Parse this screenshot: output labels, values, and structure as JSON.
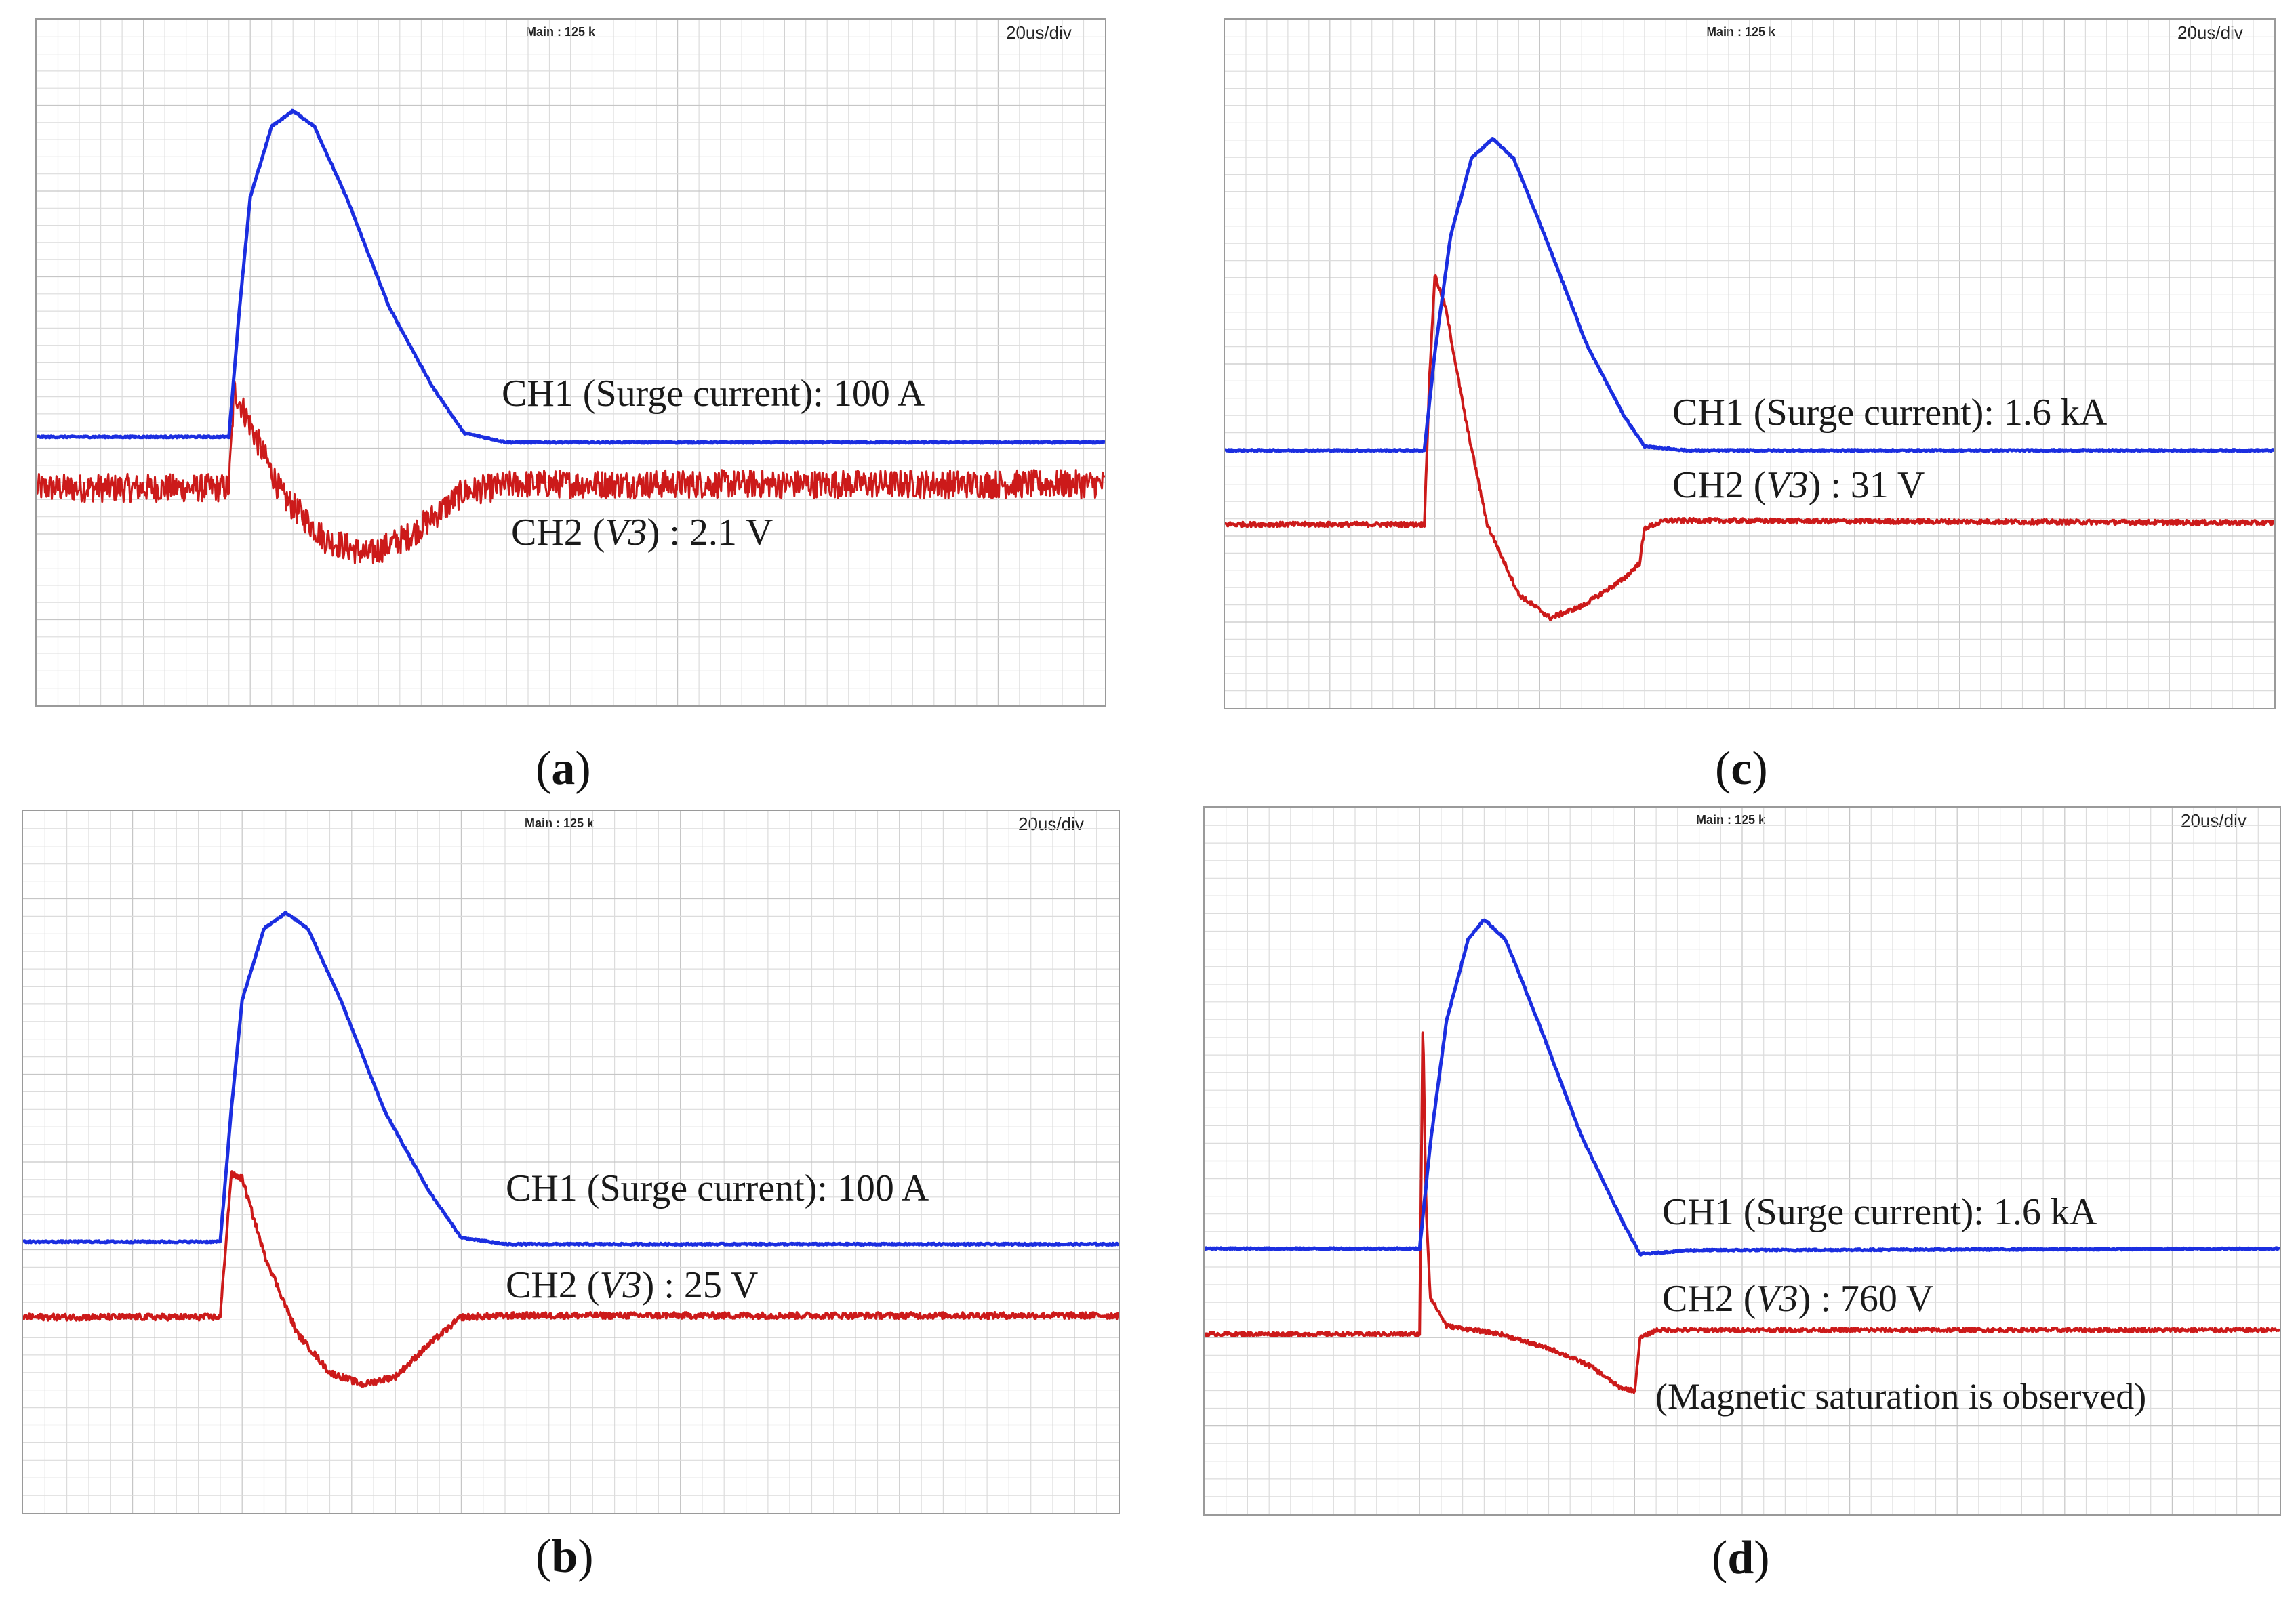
{
  "colors": {
    "ch1": "#1b2ee0",
    "ch2": "#cc1a1a",
    "grid": "#dcdcdc",
    "grid_major": "#c6c6c6"
  },
  "chart_data": [
    {
      "id": "a",
      "type": "line",
      "caption_letter": "a",
      "header": {
        "main": "Main : 125 k",
        "timebase": "20us/div"
      },
      "xlabel": "",
      "ylabel": "",
      "x_units": "us",
      "x_range": [
        0,
        200
      ],
      "y_units": "divisions",
      "y_range": [
        -4,
        4
      ],
      "series": [
        {
          "name": "CH1",
          "label": "CH1 (Surge current): 100 A",
          "quantity": "Surge current",
          "scale": "100 A",
          "points": [
            [
              0,
              -0.05
            ],
            [
              36,
              -0.05
            ],
            [
              38,
              1.6
            ],
            [
              40,
              3.0
            ],
            [
              44,
              3.9
            ],
            [
              48,
              4.1
            ],
            [
              52,
              3.9
            ],
            [
              58,
              3.0
            ],
            [
              66,
              1.6
            ],
            [
              74,
              0.6
            ],
            [
              80,
              0.0
            ],
            [
              88,
              -0.12
            ],
            [
              200,
              -0.12
            ]
          ]
        },
        {
          "name": "CH2",
          "label_prefix": "CH2 (",
          "label_var": "V3",
          "label_suffix": ") : 2.1 V",
          "quantity": "V3",
          "scale": "2.1 V",
          "noise": 0.18,
          "points": [
            [
              0,
              -0.7
            ],
            [
              36,
              -0.7
            ],
            [
              37,
              0.55
            ],
            [
              40,
              0.1
            ],
            [
              46,
              -0.8
            ],
            [
              54,
              -1.35
            ],
            [
              62,
              -1.55
            ],
            [
              70,
              -1.3
            ],
            [
              80,
              -0.75
            ],
            [
              90,
              -0.65
            ],
            [
              200,
              -0.65
            ]
          ]
        }
      ]
    },
    {
      "id": "b",
      "type": "line",
      "caption_letter": "b",
      "header": {
        "main": "Main : 125 k",
        "timebase": "20us/div"
      },
      "xlabel": "",
      "ylabel": "",
      "x_units": "us",
      "x_range": [
        0,
        200
      ],
      "y_units": "divisions",
      "y_range": [
        -4,
        4
      ],
      "series": [
        {
          "name": "CH1",
          "label": "CH1 (Surge current): 100 A",
          "quantity": "Surge current",
          "scale": "100 A",
          "points": [
            [
              0,
              -0.05
            ],
            [
              36,
              -0.05
            ],
            [
              38,
              1.6
            ],
            [
              40,
              3.0
            ],
            [
              44,
              3.9
            ],
            [
              48,
              4.1
            ],
            [
              52,
              3.9
            ],
            [
              58,
              3.0
            ],
            [
              66,
              1.6
            ],
            [
              74,
              0.6
            ],
            [
              80,
              0.0
            ],
            [
              88,
              -0.08
            ],
            [
              200,
              -0.08
            ]
          ]
        },
        {
          "name": "CH2",
          "label_prefix": "CH2 (",
          "label_var": "V3",
          "label_suffix": ") : 25 V",
          "quantity": "V3",
          "scale": "25 V",
          "noise": 0.04,
          "points": [
            [
              0,
              -1.0
            ],
            [
              36,
              -1.0
            ],
            [
              38,
              0.8
            ],
            [
              40,
              0.75
            ],
            [
              44,
              -0.2
            ],
            [
              50,
              -1.2
            ],
            [
              56,
              -1.7
            ],
            [
              62,
              -1.85
            ],
            [
              68,
              -1.75
            ],
            [
              74,
              -1.35
            ],
            [
              80,
              -1.0
            ],
            [
              90,
              -0.98
            ],
            [
              200,
              -0.98
            ]
          ]
        }
      ]
    },
    {
      "id": "c",
      "type": "line",
      "caption_letter": "c",
      "header": {
        "main": "Main : 125 k",
        "timebase": "20us/div"
      },
      "xlabel": "",
      "ylabel": "",
      "x_units": "us",
      "x_range": [
        0,
        200
      ],
      "y_units": "divisions",
      "y_range": [
        -4,
        4
      ],
      "series": [
        {
          "name": "CH1",
          "label": "CH1 (Surge current): 1.6 kA",
          "quantity": "Surge current",
          "scale": "1.6 kA",
          "points": [
            [
              0,
              -0.05
            ],
            [
              38,
              -0.05
            ],
            [
              40,
              1.2
            ],
            [
              43,
              2.7
            ],
            [
              47,
              3.7
            ],
            [
              51,
              3.95
            ],
            [
              55,
              3.7
            ],
            [
              61,
              2.7
            ],
            [
              69,
              1.3
            ],
            [
              76,
              0.4
            ],
            [
              80,
              0.0
            ],
            [
              88,
              -0.05
            ],
            [
              200,
              -0.05
            ]
          ]
        },
        {
          "name": "CH2",
          "label_prefix": "CH2 (",
          "label_var": "V3",
          "label_suffix": ") : 31 V",
          "quantity": "V3",
          "scale": "31 V",
          "noise": 0.03,
          "points": [
            [
              0,
              -1.0
            ],
            [
              38,
              -1.0
            ],
            [
              39,
              0.9
            ],
            [
              40,
              2.2
            ],
            [
              42,
              1.8
            ],
            [
              46,
              0.3
            ],
            [
              50,
              -1.0
            ],
            [
              56,
              -1.9
            ],
            [
              62,
              -2.2
            ],
            [
              68,
              -2.05
            ],
            [
              76,
              -1.7
            ],
            [
              79,
              -1.5
            ],
            [
              80,
              -1.05
            ],
            [
              84,
              -0.95
            ],
            [
              200,
              -0.98
            ]
          ]
        }
      ]
    },
    {
      "id": "d",
      "type": "line",
      "caption_letter": "d",
      "header": {
        "main": "Main : 125 k",
        "timebase": "20us/div"
      },
      "xlabel": "",
      "ylabel": "",
      "x_units": "us",
      "x_range": [
        0,
        200
      ],
      "y_units": "divisions",
      "y_range": [
        -4,
        4
      ],
      "series": [
        {
          "name": "CH1",
          "label": "CH1 (Surge current): 1.6 kA",
          "quantity": "Surge current",
          "scale": "1.6 kA",
          "points": [
            [
              0,
              0.0
            ],
            [
              40,
              0.0
            ],
            [
              42,
              1.3
            ],
            [
              45,
              2.8
            ],
            [
              49,
              3.8
            ],
            [
              52,
              4.05
            ],
            [
              56,
              3.8
            ],
            [
              62,
              2.8
            ],
            [
              70,
              1.4
            ],
            [
              78,
              0.3
            ],
            [
              81,
              -0.07
            ],
            [
              90,
              -0.02
            ],
            [
              200,
              0.0
            ]
          ]
        },
        {
          "name": "CH2",
          "label_prefix": "CH2 (",
          "label_var": "V3",
          "label_suffix": ") : 760 V",
          "quantity": "V3",
          "scale": "760 V",
          "noise": 0.025,
          "points": [
            [
              0,
              -1.05
            ],
            [
              40,
              -1.05
            ],
            [
              40.6,
              2.85
            ],
            [
              41.2,
              0.5
            ],
            [
              42,
              -0.6
            ],
            [
              45,
              -0.95
            ],
            [
              55,
              -1.05
            ],
            [
              65,
              -1.25
            ],
            [
              72,
              -1.45
            ],
            [
              77,
              -1.7
            ],
            [
              80,
              -1.75
            ],
            [
              81,
              -1.1
            ],
            [
              84,
              -1.0
            ],
            [
              200,
              -1.0
            ]
          ]
        }
      ],
      "note": "(Magnetic saturation is observed)"
    }
  ]
}
